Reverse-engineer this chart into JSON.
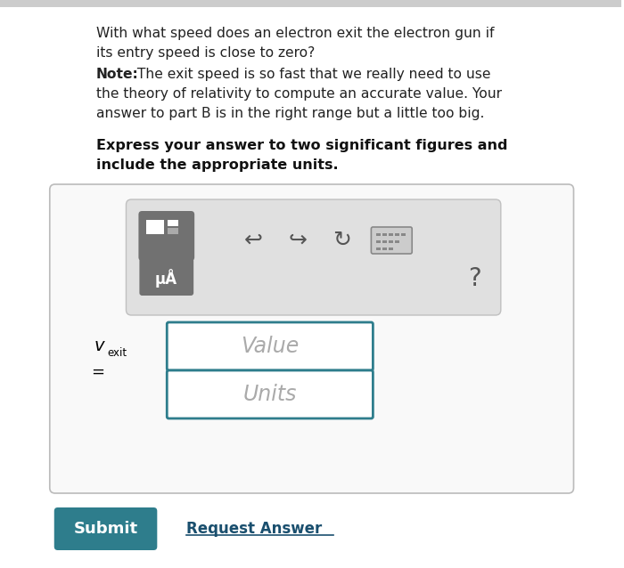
{
  "outer_bg": "#ffffff",
  "text_line1": "With what speed does an electron exit the electron gun if",
  "text_line2": "its entry speed is close to zero?",
  "note_bold": "Note:",
  "note_rest": " The exit speed is so fast that we really need to use",
  "note_line2": "the theory of relativity to compute an accurate value. Your",
  "note_line3": "answer to part B is in the right range but a little too big.",
  "bold_line1": "Express your answer to two significant figures and",
  "bold_line2": "include the appropriate units.",
  "value_placeholder": "Value",
  "units_placeholder": "Units",
  "submit_text": "Submit",
  "request_text": "Request Answer",
  "v_label": "v",
  "v_sub": "exit",
  "equals": "=",
  "submit_bg": "#2e7d8c",
  "submit_text_color": "#ffffff",
  "request_color": "#1a4f6e",
  "box_border": "#2e7d8c",
  "inner_panel_bg": "#e0e0e0",
  "inner_panel_border": "#c0c0c0",
  "outer_panel_bg": "#f9f9f9",
  "outer_panel_border": "#bbbbbb",
  "mu_bg": "#717171",
  "mu_text": "#ffffff",
  "toolbar_icon_bg": "#717171",
  "icon_color": "#555555",
  "top_bar_color": "#cccccc"
}
